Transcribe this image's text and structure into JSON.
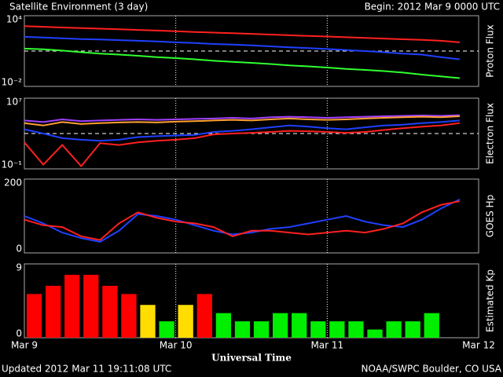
{
  "title": "Satellite Environment (3 day)",
  "begin": "Begin:  2012 Mar 9 0000 UTC",
  "x_label": "Universal Time",
  "updated": "Updated 2012 Mar 11 19:11:08 UTC",
  "credit": "NOAA/SWPC Boulder, CO USA",
  "chart_data": [
    {
      "type": "line",
      "ylabel": "Proton Flux",
      "log": true,
      "ylim": [
        0.01,
        10000
      ],
      "yticks": [
        {
          "value": 10000,
          "label": "10⁴"
        },
        {
          "value": 0.01,
          "label": "10⁻²"
        }
      ],
      "threshold": 10,
      "xlim": [
        0,
        72
      ],
      "x": [
        0,
        3,
        6,
        9,
        12,
        15,
        18,
        21,
        24,
        27,
        30,
        33,
        36,
        39,
        42,
        45,
        48,
        51,
        54,
        57,
        60,
        63,
        66,
        69
      ],
      "series": [
        {
          "color": "#ff2020",
          "values": [
            1300,
            1150,
            1000,
            900,
            800,
            700,
            620,
            550,
            480,
            420,
            370,
            330,
            290,
            250,
            220,
            190,
            170,
            150,
            130,
            115,
            100,
            90,
            75,
            55
          ]
        },
        {
          "color": "#2040ff",
          "values": [
            160,
            140,
            120,
            105,
            95,
            85,
            75,
            65,
            55,
            48,
            40,
            35,
            30,
            25,
            21,
            18,
            15,
            12,
            10,
            8,
            6,
            5,
            3,
            2
          ]
        },
        {
          "color": "#30ff30",
          "values": [
            16,
            14,
            11,
            8,
            6,
            5,
            4,
            3,
            2.5,
            2,
            1.5,
            1.2,
            1,
            0.8,
            0.6,
            0.5,
            0.4,
            0.3,
            0.25,
            0.2,
            0.15,
            0.1,
            0.07,
            0.05
          ]
        }
      ]
    },
    {
      "type": "line",
      "ylabel": "Electron Flux",
      "log": true,
      "ylim": [
        0.1,
        10000000
      ],
      "yticks": [
        {
          "value": 10000000,
          "label": "10⁷"
        },
        {
          "value": 0.1,
          "label": "10⁻¹"
        }
      ],
      "threshold": 1000,
      "xlim": [
        0,
        72
      ],
      "x": [
        0,
        3,
        6,
        9,
        12,
        15,
        18,
        21,
        24,
        27,
        30,
        33,
        36,
        39,
        42,
        45,
        48,
        51,
        54,
        57,
        60,
        63,
        66,
        69
      ],
      "series": [
        {
          "color": "#a040ff",
          "values": [
            30000,
            20000,
            40000,
            25000,
            30000,
            35000,
            40000,
            35000,
            40000,
            45000,
            50000,
            60000,
            50000,
            70000,
            80000,
            70000,
            60000,
            70000,
            80000,
            90000,
            100000,
            110000,
            100000,
            120000
          ]
        },
        {
          "color": "#ffa030",
          "values": [
            15000,
            8000,
            20000,
            12000,
            15000,
            18000,
            20000,
            18000,
            22000,
            25000,
            30000,
            35000,
            30000,
            40000,
            50000,
            40000,
            35000,
            40000,
            50000,
            60000,
            70000,
            80000,
            70000,
            90000
          ]
        },
        {
          "color": "#2040ff",
          "values": [
            3000,
            1000,
            300,
            200,
            150,
            200,
            400,
            500,
            600,
            700,
            1500,
            2000,
            3000,
            5000,
            8000,
            6000,
            4000,
            3000,
            5000,
            8000,
            10000,
            15000,
            20000,
            30000
          ]
        },
        {
          "color": "#ff2020",
          "values": [
            100,
            0.3,
            50,
            0.2,
            80,
            50,
            100,
            150,
            200,
            300,
            800,
            1000,
            1200,
            1500,
            2000,
            1800,
            1500,
            1200,
            1500,
            2500,
            4000,
            6000,
            8000,
            15000
          ]
        }
      ]
    },
    {
      "type": "line",
      "ylabel": "GOES Hp",
      "log": false,
      "ylim": [
        0,
        200
      ],
      "yticks": [
        200,
        0
      ],
      "xlim": [
        0,
        72
      ],
      "x": [
        0,
        3,
        6,
        9,
        12,
        15,
        18,
        21,
        24,
        27,
        30,
        33,
        36,
        39,
        42,
        45,
        48,
        51,
        54,
        57,
        60,
        63,
        66,
        69
      ],
      "series": [
        {
          "color": "#2040ff",
          "values": [
            100,
            80,
            55,
            40,
            30,
            60,
            105,
            100,
            90,
            75,
            60,
            50,
            55,
            65,
            70,
            80,
            90,
            100,
            85,
            75,
            70,
            90,
            120,
            145
          ]
        },
        {
          "color": "#ff2020",
          "values": [
            90,
            75,
            70,
            45,
            35,
            80,
            110,
            95,
            85,
            80,
            70,
            45,
            60,
            60,
            55,
            50,
            55,
            60,
            55,
            65,
            80,
            110,
            130,
            140
          ]
        }
      ]
    },
    {
      "type": "bar",
      "ylabel": "Estimated Kp",
      "ylim": [
        0,
        9
      ],
      "yticks": [
        9,
        0
      ],
      "xlim": [
        0,
        72
      ],
      "xticks": [
        {
          "value": 0,
          "label": "Mar 9"
        },
        {
          "value": 24,
          "label": "Mar 10"
        },
        {
          "value": 48,
          "label": "Mar 11"
        },
        {
          "value": 72,
          "label": "Mar 12"
        }
      ],
      "x": [
        0,
        3,
        6,
        9,
        12,
        15,
        18,
        21,
        24,
        27,
        30,
        33,
        36,
        39,
        42,
        45,
        48,
        51,
        54,
        57,
        60,
        63
      ],
      "values": [
        5.33,
        6.33,
        7.67,
        7.67,
        6.33,
        5.33,
        4,
        2,
        4,
        5.33,
        3,
        2,
        2,
        3,
        3,
        2,
        2,
        2,
        1,
        2,
        2,
        3
      ],
      "colors": [
        "#ff0000",
        "#ff0000",
        "#ff0000",
        "#ff0000",
        "#ff0000",
        "#ff0000",
        "#ffdd00",
        "#00ee00",
        "#ffdd00",
        "#ff0000",
        "#00ee00",
        "#00ee00",
        "#00ee00",
        "#00ee00",
        "#00ee00",
        "#00ee00",
        "#00ee00",
        "#00ee00",
        "#00ee00",
        "#00ee00",
        "#00ee00",
        "#00ee00"
      ]
    }
  ]
}
